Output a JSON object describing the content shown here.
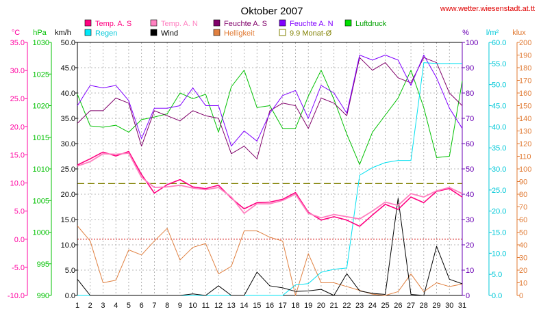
{
  "url_text": "www.wetter.wiesenstadt.at.tt",
  "colors": {
    "temp_c": "#ff00a0",
    "hpa": "#00c000",
    "kmh": "#000000",
    "pct": "#6a00b4",
    "lm2": "#00c8d8",
    "klux": "#e07830"
  },
  "axis_units": {
    "temp_c": "°C",
    "hpa": "hPa",
    "kmh": "km/h",
    "pct": "%",
    "lm2": "l/m²",
    "klux": "klux"
  },
  "axes": {
    "temp_c": [
      "35.0",
      "30.0",
      "25.0",
      "20.0",
      "15.0",
      "10.0",
      "5.0",
      "0.0",
      "-5.0",
      "-10.0"
    ],
    "hpa": [
      "1030",
      "1025",
      "1020",
      "1015",
      "1010",
      "1005",
      "1000",
      "995",
      "990"
    ],
    "kmh": [
      "50.0",
      "45.0",
      "40.0",
      "35.0",
      "30.0",
      "25.0",
      "20.0",
      "15.0",
      "10.0",
      "5.0",
      "0.0"
    ],
    "pct": [
      "100",
      "90",
      "80",
      "70",
      "60",
      "50",
      "40",
      "30",
      "20",
      "10",
      "0"
    ],
    "lm2": [
      "60.0",
      "55.0",
      "50.0",
      "45.0",
      "40.0",
      "35.0",
      "30.0",
      "25.0",
      "20.0",
      "15.0",
      "10.0",
      "5.0",
      "0.0"
    ],
    "klux": [
      "200",
      "190",
      "180",
      "170",
      "160",
      "150",
      "140",
      "130",
      "120",
      "110",
      "100",
      "90",
      "80",
      "70",
      "60",
      "50",
      "40",
      "30",
      "20",
      "10",
      "0"
    ]
  },
  "chart_data": {
    "type": "line",
    "title": "Oktober 2007",
    "x": [
      1,
      2,
      3,
      4,
      5,
      6,
      7,
      8,
      9,
      10,
      11,
      12,
      13,
      14,
      15,
      16,
      17,
      18,
      19,
      20,
      21,
      22,
      23,
      24,
      25,
      26,
      27,
      28,
      29,
      30,
      31
    ],
    "reference_line": {
      "name": "9.9 Monat-Ø",
      "value_c": 9.9,
      "color": "#808000"
    },
    "series": [
      {
        "name": "Temp. A. S",
        "unit": "°C",
        "color": "#ff0080",
        "values": [
          13.2,
          14.3,
          15.5,
          14.8,
          15.6,
          11.5,
          8.2,
          9.7,
          10.6,
          9.3,
          9.0,
          9.6,
          7.3,
          5.4,
          6.5,
          6.6,
          7.1,
          8.3,
          4.8,
          3.4,
          4.0,
          3.4,
          2.3,
          4.3,
          6.2,
          5.3,
          7.5,
          6.5,
          8.5,
          9.0,
          7.5
        ]
      },
      {
        "name": "Temp. A. N",
        "unit": "°C",
        "color": "#ff80c0",
        "values": [
          13.0,
          13.8,
          15.2,
          15.1,
          15.3,
          11.0,
          9.2,
          9.3,
          9.6,
          9.1,
          8.8,
          9.2,
          7.5,
          4.6,
          6.3,
          6.3,
          6.9,
          8.0,
          4.6,
          3.8,
          4.4,
          4.0,
          3.6,
          5.0,
          6.6,
          6.0,
          8.1,
          7.5,
          8.6,
          9.2,
          8.1
        ]
      },
      {
        "name": "Feuchte A. S",
        "unit": "%",
        "color": "#80006a",
        "values": [
          68,
          73,
          73,
          78,
          76,
          59,
          73,
          71,
          69,
          73,
          71,
          70,
          56,
          59,
          54,
          73,
          76,
          75,
          66,
          78,
          76,
          71,
          94,
          89,
          92,
          86,
          84,
          94,
          92,
          80,
          75
        ]
      },
      {
        "name": "Feuchte A. N",
        "unit": "%",
        "color": "#8000ff",
        "values": [
          75,
          83,
          82,
          83,
          77,
          62,
          74,
          74,
          75,
          82,
          75,
          75,
          59,
          65,
          61,
          72,
          79,
          81,
          70,
          83,
          80,
          72,
          95,
          93,
          95,
          93,
          83,
          95,
          86,
          74,
          66
        ]
      },
      {
        "name": "Luftdruck",
        "unit": "hPa",
        "color": "#00c000",
        "values": [
          1021.8,
          1016.8,
          1016.6,
          1016.9,
          1015.8,
          1017.8,
          1018.2,
          1018.7,
          1022.0,
          1021.1,
          1021.8,
          1015.8,
          1023.0,
          1025.6,
          1019.7,
          1020.0,
          1016.4,
          1016.4,
          1021.5,
          1025.6,
          1021.0,
          1015.5,
          1010.7,
          1015.8,
          1018.5,
          1021.2,
          1025.6,
          1019.7,
          1011.8,
          1012.0,
          1023.9
        ]
      },
      {
        "name": "Regen",
        "unit": "l/m²",
        "color": "#00e0f0",
        "values": [
          0,
          0,
          0,
          0,
          0,
          0,
          0,
          0,
          0,
          0,
          0,
          0,
          0,
          0,
          0,
          0,
          0,
          2.5,
          2.8,
          5.5,
          6.2,
          6.5,
          28.5,
          30.3,
          31.5,
          32.0,
          32.0,
          55.2,
          55.0,
          55.0,
          55.0
        ]
      },
      {
        "name": "Wind",
        "unit": "km/h",
        "color": "#000000",
        "values": [
          3.2,
          0,
          0,
          0,
          0,
          0,
          0,
          0,
          0,
          0.3,
          0,
          1.9,
          0,
          0,
          4.6,
          1.9,
          1.5,
          0.8,
          0.9,
          1.2,
          0,
          4.3,
          0.9,
          0.4,
          0.2,
          19.2,
          0.2,
          0,
          9.7,
          3.2,
          2.3
        ]
      },
      {
        "name": "Helligkeit",
        "unit": "klux",
        "color": "#e08040",
        "values": [
          55,
          43,
          10,
          12,
          36,
          32,
          43,
          53,
          28,
          38,
          41,
          17,
          23,
          51,
          51,
          46,
          43,
          0,
          33,
          10,
          10,
          7,
          4,
          1,
          0,
          3,
          17,
          3,
          10,
          7,
          9
        ]
      }
    ],
    "xlim": [
      1,
      31
    ],
    "ylim_temp_c": [
      -10,
      35
    ],
    "ylim_hpa": [
      990,
      1030
    ],
    "ylim_kmh": [
      0,
      50
    ],
    "ylim_pct": [
      0,
      100
    ],
    "ylim_lm2": [
      0,
      60
    ],
    "ylim_klux": [
      0,
      200
    ],
    "grid": true,
    "legend": "top"
  }
}
